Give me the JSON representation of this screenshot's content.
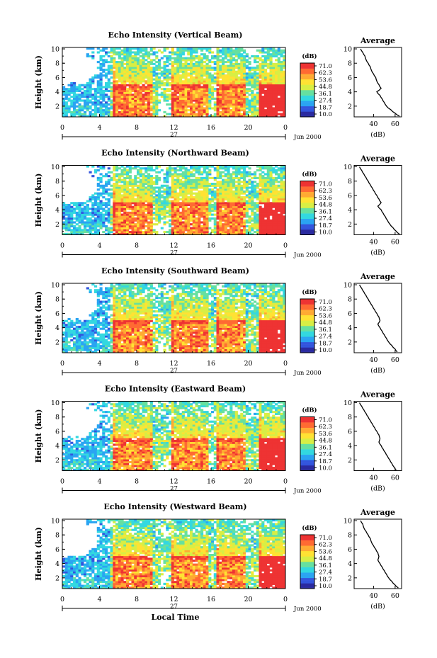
{
  "chart_data": [
    {
      "type": "heatmap",
      "title": "Echo Intensity (Vertical Beam)",
      "ylabel": "Height (km)",
      "ylim": [
        0.5,
        10.2
      ],
      "yticks": [
        "2",
        "4",
        "6",
        "8",
        "10"
      ],
      "x": [
        0,
        4,
        8,
        12,
        16,
        20,
        24
      ],
      "xtick_labels": [
        "0",
        "4",
        "8",
        "12",
        "16",
        "20",
        "0"
      ],
      "day_label": "27",
      "date_label": "Jun 2000",
      "colorbar_title": "(dB)",
      "colorbar_ticks": [
        "71.0",
        "62.3",
        "53.6",
        "44.8",
        "36.1",
        "27.4",
        "18.7",
        "10.0"
      ],
      "bright_echo_intervals_h": [
        [
          5.4,
          9.8
        ],
        [
          11.7,
          15.8
        ],
        [
          16.5,
          19.8
        ],
        [
          21.1,
          24.0
        ]
      ],
      "average": {
        "title": "Average",
        "xlabel": "(dB)",
        "xticks": [
          "40",
          "60"
        ],
        "yticks": [
          "2",
          "4",
          "6",
          "8",
          "10"
        ],
        "height_km": [
          10,
          9.5,
          9,
          8.5,
          8,
          7.5,
          7,
          6.5,
          6,
          5.5,
          5,
          4.5,
          4,
          3.5,
          3,
          2.5,
          2,
          1.5,
          1,
          0.6
        ],
        "value_db": [
          28,
          30,
          32,
          33,
          35,
          37,
          38,
          40,
          42,
          43,
          45,
          47,
          43,
          46,
          48,
          50,
          52,
          56,
          60,
          64
        ]
      }
    },
    {
      "type": "heatmap",
      "title": "Echo Intensity (Northward Beam)",
      "ylabel": "Height (km)",
      "ylim": [
        0.5,
        10.2
      ],
      "yticks": [
        "2",
        "4",
        "6",
        "8",
        "10"
      ],
      "x": [
        0,
        4,
        8,
        12,
        16,
        20,
        24
      ],
      "xtick_labels": [
        "0",
        "4",
        "8",
        "12",
        "16",
        "20",
        "0"
      ],
      "day_label": "27",
      "date_label": "Jun 2000",
      "colorbar_title": "(dB)",
      "colorbar_ticks": [
        "71.0",
        "62.3",
        "53.6",
        "44.8",
        "36.1",
        "27.4",
        "18.7",
        "10.0"
      ],
      "bright_echo_intervals_h": [
        [
          5.4,
          9.8
        ],
        [
          11.7,
          15.8
        ],
        [
          16.5,
          19.8
        ],
        [
          21.1,
          24.0
        ]
      ],
      "average": {
        "title": "Average",
        "xlabel": "(dB)",
        "xticks": [
          "40",
          "60"
        ],
        "yticks": [
          "2",
          "4",
          "6",
          "8",
          "10"
        ],
        "height_km": [
          10,
          9.5,
          9,
          8.5,
          8,
          7.5,
          7,
          6.5,
          6,
          5.5,
          5,
          4.5,
          4,
          3.5,
          3,
          2.5,
          2,
          1.5,
          1,
          0.6
        ],
        "value_db": [
          27,
          29,
          31,
          33,
          35,
          37,
          39,
          41,
          43,
          45,
          47,
          44,
          47,
          49,
          51,
          53,
          55,
          58,
          61,
          64
        ]
      }
    },
    {
      "type": "heatmap",
      "title": "Echo Intensity (Southward Beam)",
      "ylabel": "Height (km)",
      "ylim": [
        0.5,
        10.2
      ],
      "yticks": [
        "2",
        "4",
        "6",
        "8",
        "10"
      ],
      "x": [
        0,
        4,
        8,
        12,
        16,
        20,
        24
      ],
      "xtick_labels": [
        "0",
        "4",
        "8",
        "12",
        "16",
        "20",
        "0"
      ],
      "day_label": "27",
      "date_label": "Jun 2000",
      "colorbar_title": "(dB)",
      "colorbar_ticks": [
        "71.0",
        "62.3",
        "53.6",
        "44.8",
        "36.1",
        "27.4",
        "18.7",
        "10.0"
      ],
      "bright_echo_intervals_h": [
        [
          5.4,
          9.8
        ],
        [
          11.7,
          15.8
        ],
        [
          16.5,
          19.8
        ],
        [
          21.1,
          24.0
        ]
      ],
      "average": {
        "title": "Average",
        "xlabel": "(dB)",
        "xticks": [
          "40",
          "60"
        ],
        "yticks": [
          "2",
          "4",
          "6",
          "8",
          "10"
        ],
        "height_km": [
          10,
          9.5,
          9,
          8.5,
          8,
          7.5,
          7,
          6.5,
          6,
          5.5,
          5,
          4.5,
          4,
          3.5,
          3,
          2.5,
          2,
          1.5,
          1,
          0.6
        ],
        "value_db": [
          27,
          29,
          31,
          33,
          35,
          37,
          39,
          41,
          43,
          45,
          46,
          44,
          46,
          48,
          50,
          52,
          54,
          57,
          60,
          62
        ]
      }
    },
    {
      "type": "heatmap",
      "title": "Echo Intensity (Eastward Beam)",
      "ylabel": "Height (km)",
      "ylim": [
        0.5,
        10.2
      ],
      "yticks": [
        "2",
        "4",
        "6",
        "8",
        "10"
      ],
      "x": [
        0,
        4,
        8,
        12,
        16,
        20,
        24
      ],
      "xtick_labels": [
        "0",
        "4",
        "8",
        "12",
        "16",
        "20",
        "0"
      ],
      "day_label": "27",
      "date_label": "Jun 2000",
      "colorbar_title": "(dB)",
      "colorbar_ticks": [
        "71.0",
        "62.3",
        "53.6",
        "44.8",
        "36.1",
        "27.4",
        "18.7",
        "10.0"
      ],
      "bright_echo_intervals_h": [
        [
          5.4,
          9.8
        ],
        [
          11.7,
          15.8
        ],
        [
          16.5,
          19.8
        ],
        [
          21.1,
          24.0
        ]
      ],
      "average": {
        "title": "Average",
        "xlabel": "(dB)",
        "xticks": [
          "40",
          "60"
        ],
        "yticks": [
          "2",
          "4",
          "6",
          "8",
          "10"
        ],
        "height_km": [
          10,
          9.5,
          9,
          8.5,
          8,
          7.5,
          7,
          6.5,
          6,
          5.5,
          5,
          4.5,
          4,
          3.5,
          3,
          2.5,
          2,
          1.5,
          1,
          0.6
        ],
        "value_db": [
          27,
          29,
          31,
          33,
          35,
          37,
          39,
          41,
          43,
          45,
          46,
          45,
          47,
          49,
          51,
          53,
          55,
          57,
          59,
          61
        ]
      }
    },
    {
      "type": "heatmap",
      "title": "Echo Intensity (Westward Beam)",
      "ylabel": "Height (km)",
      "xlabel": "Local Time",
      "ylim": [
        0.5,
        10.2
      ],
      "yticks": [
        "2",
        "4",
        "6",
        "8",
        "10"
      ],
      "x": [
        0,
        4,
        8,
        12,
        16,
        20,
        24
      ],
      "xtick_labels": [
        "0",
        "4",
        "8",
        "12",
        "16",
        "20",
        "0"
      ],
      "day_label": "27",
      "date_label": "Jun 2000",
      "colorbar_title": "(dB)",
      "colorbar_ticks": [
        "71.0",
        "62.3",
        "53.6",
        "44.8",
        "36.1",
        "27.4",
        "18.7",
        "10.0"
      ],
      "bright_echo_intervals_h": [
        [
          5.4,
          9.8
        ],
        [
          11.7,
          15.8
        ],
        [
          16.5,
          19.8
        ],
        [
          21.1,
          24.0
        ]
      ],
      "average": {
        "title": "Average",
        "xlabel": "(dB)",
        "xticks": [
          "40",
          "60"
        ],
        "yticks": [
          "2",
          "4",
          "6",
          "8",
          "10"
        ],
        "height_km": [
          10,
          9.5,
          9,
          8.5,
          8,
          7.5,
          7,
          6.5,
          6,
          5.5,
          5,
          4.5,
          4,
          3.5,
          3,
          2.5,
          2,
          1.5,
          1,
          0.6
        ],
        "value_db": [
          28,
          30,
          31,
          33,
          35,
          37,
          38,
          40,
          42,
          44,
          45,
          44,
          46,
          48,
          50,
          52,
          54,
          57,
          60,
          63
        ]
      }
    }
  ],
  "colormap": [
    "#2a2aa0",
    "#3355dd",
    "#2aa4f2",
    "#33d8e0",
    "#66e0a0",
    "#d8ee44",
    "#ffe233",
    "#ffaa33",
    "#ff6a33",
    "#ee3333"
  ]
}
